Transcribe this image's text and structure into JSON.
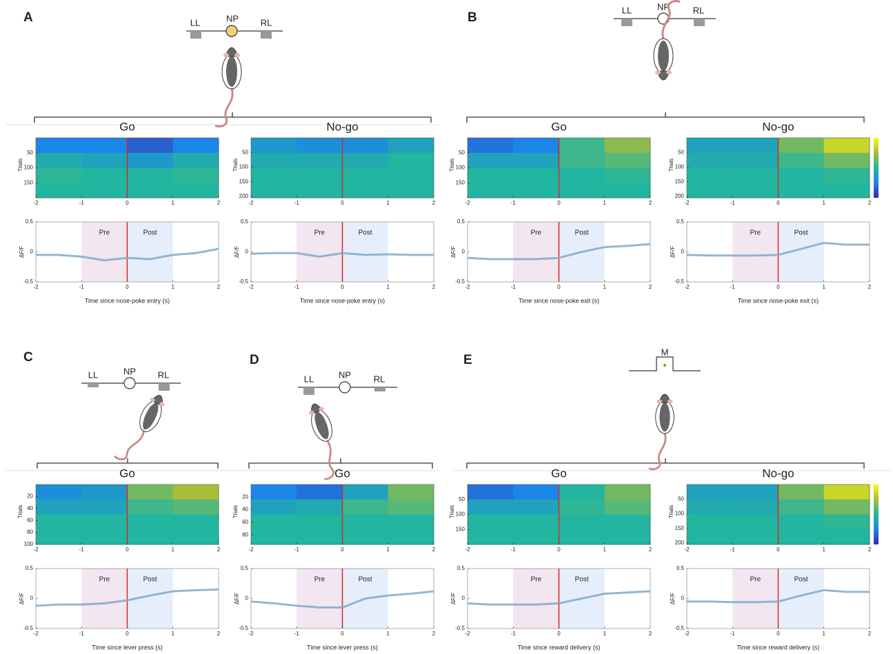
{
  "panels": [
    {
      "letter": "A",
      "labels": [
        "LL",
        "NP",
        "RL"
      ]
    },
    {
      "letter": "B",
      "labels": [
        "LL",
        "NP",
        "RL"
      ]
    },
    {
      "letter": "C",
      "labels": [
        "LL",
        "NP",
        "RL"
      ]
    },
    {
      "letter": "D",
      "labels": [
        "LL",
        "NP",
        "RL"
      ]
    },
    {
      "letter": "E",
      "labels": [
        "M"
      ]
    }
  ],
  "chart_data": [
    {
      "type": "heatmap",
      "title": "Go",
      "ylabel": "Trials",
      "xlim": [
        -2,
        2
      ],
      "xticks": [
        -2,
        -1,
        0,
        1,
        2
      ],
      "ylim": [
        0,
        200
      ],
      "yticks": [
        50,
        100,
        150
      ],
      "clim": [
        -1,
        1
      ],
      "vline": 0,
      "vline_color": "#d62728",
      "values": [
        [
          -0.5,
          -0.5,
          -0.7,
          -0.5
        ],
        [
          -0.1,
          -0.2,
          -0.3,
          -0.1
        ],
        [
          0.05,
          0,
          0,
          0.05
        ],
        [
          0,
          0,
          0,
          0
        ]
      ]
    },
    {
      "type": "line",
      "ylabel": "ΔF/F",
      "xlabel": "Time since nose-poke entry (s)",
      "xlim": [
        -2,
        2
      ],
      "xticks": [
        -2,
        -1,
        0,
        1,
        2
      ],
      "ylim": [
        -0.5,
        0.5
      ],
      "yticks": [
        -0.5,
        0,
        0.5
      ],
      "vline": 0,
      "vline_color": "#d62728",
      "color": "#7fa9cc",
      "regions": [
        {
          "label": "Pre",
          "x": [
            -1,
            0
          ],
          "color": "#f2e6f0"
        },
        {
          "label": "Post",
          "x": [
            0,
            1
          ],
          "color": "#e6eefb"
        }
      ],
      "x": [
        -2,
        -1.5,
        -1,
        -0.5,
        0,
        0.5,
        1,
        1.5,
        2
      ],
      "values": [
        -0.05,
        -0.05,
        -0.08,
        -0.14,
        -0.1,
        -0.12,
        -0.05,
        -0.02,
        0.05
      ]
    },
    {
      "type": "heatmap",
      "title": "No-go",
      "ylabel": "Trials",
      "xlim": [
        -2,
        2
      ],
      "xticks": [
        -2,
        -1,
        0,
        1,
        2
      ],
      "ylim": [
        0,
        205
      ],
      "yticks": [
        50,
        100,
        150,
        200
      ],
      "clim": [
        -1,
        1
      ],
      "vline": 0,
      "vline_color": "#d62728",
      "values": [
        [
          -0.3,
          -0.4,
          -0.4,
          -0.2
        ],
        [
          -0.1,
          -0.1,
          -0.1,
          0
        ],
        [
          0,
          0,
          0,
          0
        ],
        [
          0,
          0,
          0,
          0
        ]
      ]
    },
    {
      "type": "line",
      "ylabel": "ΔF/F",
      "xlabel": "Time since nose-poke entry (s)",
      "xlim": [
        -2,
        2
      ],
      "xticks": [
        -2,
        -1,
        0,
        1,
        2
      ],
      "ylim": [
        -0.5,
        0.5
      ],
      "yticks": [
        -0.5,
        0,
        0.5
      ],
      "vline": 0,
      "vline_color": "#d62728",
      "color": "#7fa9cc",
      "regions": [
        {
          "label": "Pre",
          "x": [
            -1,
            0
          ],
          "color": "#f2e6f0"
        },
        {
          "label": "Post",
          "x": [
            0,
            1
          ],
          "color": "#e6eefb"
        }
      ],
      "x": [
        -2,
        -1.5,
        -1,
        -0.5,
        0,
        0.5,
        1,
        1.5,
        2
      ],
      "values": [
        -0.03,
        -0.02,
        -0.02,
        -0.08,
        -0.02,
        -0.05,
        -0.04,
        -0.05,
        -0.05
      ]
    },
    {
      "type": "heatmap",
      "title": "Go",
      "ylabel": "Trials",
      "xlim": [
        -2,
        2
      ],
      "xticks": [
        -2,
        -1,
        0,
        1,
        2
      ],
      "ylim": [
        0,
        200
      ],
      "yticks": [
        50,
        100,
        150
      ],
      "clim": [
        -1,
        1
      ],
      "vline": 0,
      "vline_color": "#d62728",
      "values": [
        [
          -0.6,
          -0.5,
          0.1,
          0.4
        ],
        [
          -0.2,
          -0.2,
          0.1,
          0.2
        ],
        [
          0,
          0,
          0,
          0.05
        ],
        [
          0,
          0,
          0,
          0
        ]
      ]
    },
    {
      "type": "line",
      "ylabel": "ΔF/F",
      "xlabel": "Time since nose-poke exit (s)",
      "xlim": [
        -2,
        2
      ],
      "xticks": [
        -2,
        -1,
        0,
        1,
        2
      ],
      "ylim": [
        -0.5,
        0.5
      ],
      "yticks": [
        -0.5,
        0,
        0.5
      ],
      "vline": 0,
      "vline_color": "#d62728",
      "color": "#7fa9cc",
      "regions": [
        {
          "label": "Pre",
          "x": [
            -1,
            0
          ],
          "color": "#f2e6f0"
        },
        {
          "label": "Post",
          "x": [
            0,
            1
          ],
          "color": "#e6eefb"
        }
      ],
      "x": [
        -2,
        -1.5,
        -1,
        -0.5,
        0,
        0.5,
        1,
        1.5,
        2
      ],
      "values": [
        -0.1,
        -0.12,
        -0.12,
        -0.12,
        -0.1,
        0,
        0.08,
        0.1,
        0.13
      ]
    },
    {
      "type": "heatmap",
      "title": "No-go",
      "ylabel": "Trials",
      "xlim": [
        -2,
        2
      ],
      "xticks": [
        -2,
        -1,
        0,
        1,
        2
      ],
      "ylim": [
        0,
        205
      ],
      "yticks": [
        50,
        100,
        150,
        200
      ],
      "clim": [
        -1,
        1
      ],
      "vline": 0,
      "vline_color": "#d62728",
      "colorbar": true,
      "values": [
        [
          -0.2,
          -0.2,
          0.3,
          0.7
        ],
        [
          -0.1,
          -0.1,
          0.1,
          0.3
        ],
        [
          0,
          0,
          0,
          0.05
        ],
        [
          0,
          0,
          0,
          0
        ]
      ]
    },
    {
      "type": "line",
      "ylabel": "ΔF/F",
      "xlabel": "Time since nose-poke exit (s)",
      "xlim": [
        -2,
        2
      ],
      "xticks": [
        -2,
        -1,
        0,
        1,
        2
      ],
      "ylim": [
        -0.5,
        0.5
      ],
      "yticks": [
        -0.5,
        0,
        0.5
      ],
      "vline": 0,
      "vline_color": "#d62728",
      "color": "#7fa9cc",
      "regions": [
        {
          "label": "Pre",
          "x": [
            -1,
            0
          ],
          "color": "#f2e6f0"
        },
        {
          "label": "Post",
          "x": [
            0,
            1
          ],
          "color": "#e6eefb"
        }
      ],
      "x": [
        -2,
        -1.5,
        -1,
        -0.5,
        0,
        0.5,
        1,
        1.5,
        2
      ],
      "values": [
        -0.05,
        -0.06,
        -0.06,
        -0.06,
        -0.05,
        0.05,
        0.15,
        0.12,
        0.12
      ]
    },
    {
      "type": "heatmap",
      "title": "Go",
      "ylabel": "Trials",
      "xlim": [
        -2,
        2
      ],
      "xticks": [
        -2,
        -1,
        0,
        1,
        2
      ],
      "ylim": [
        0,
        100
      ],
      "yticks": [
        20,
        40,
        60,
        80,
        100
      ],
      "clim": [
        -1,
        1
      ],
      "vline": 0,
      "vline_color": "#d62728",
      "values": [
        [
          -0.4,
          -0.3,
          0.3,
          0.5
        ],
        [
          -0.2,
          -0.2,
          0.1,
          0.2
        ],
        [
          0,
          0,
          0,
          0
        ],
        [
          0,
          0,
          0,
          0
        ]
      ]
    },
    {
      "type": "line",
      "ylabel": "ΔF/F",
      "xlabel": "Time since lever press (s)",
      "xlim": [
        -2,
        2
      ],
      "xticks": [
        -2,
        -1,
        0,
        1,
        2
      ],
      "ylim": [
        -0.5,
        0.5
      ],
      "yticks": [
        -0.5,
        0,
        0.5
      ],
      "vline": 0,
      "vline_color": "#d62728",
      "color": "#7fa9cc",
      "regions": [
        {
          "label": "Pre",
          "x": [
            -1,
            0
          ],
          "color": "#f2e6f0"
        },
        {
          "label": "Post",
          "x": [
            0,
            1
          ],
          "color": "#e6eefb"
        }
      ],
      "x": [
        -2,
        -1.5,
        -1,
        -0.5,
        0,
        0.5,
        1,
        1.5,
        2
      ],
      "values": [
        -0.12,
        -0.1,
        -0.1,
        -0.08,
        -0.03,
        0.05,
        0.12,
        0.14,
        0.15
      ]
    },
    {
      "type": "heatmap",
      "title": "Go",
      "ylabel": "Trials",
      "xlim": [
        -2,
        2
      ],
      "xticks": [
        -2,
        -1,
        0,
        1,
        2
      ],
      "ylim": [
        0,
        95
      ],
      "yticks": [
        20,
        40,
        60,
        80
      ],
      "clim": [
        -1,
        1
      ],
      "vline": 0,
      "vline_color": "#d62728",
      "values": [
        [
          -0.5,
          -0.6,
          -0.2,
          0.3
        ],
        [
          -0.2,
          -0.1,
          0.1,
          0.2
        ],
        [
          0,
          0,
          0,
          0
        ],
        [
          0,
          0,
          0,
          0
        ]
      ]
    },
    {
      "type": "line",
      "ylabel": "ΔF/F",
      "xlabel": "Time since lever press (s)",
      "xlim": [
        -2,
        2
      ],
      "xticks": [
        -2,
        -1,
        0,
        1,
        2
      ],
      "ylim": [
        -0.5,
        0.5
      ],
      "yticks": [
        -0.5,
        0,
        0.5
      ],
      "vline": 0,
      "vline_color": "#d62728",
      "color": "#7fa9cc",
      "regions": [
        {
          "label": "Pre",
          "x": [
            -1,
            0
          ],
          "color": "#f2e6f0"
        },
        {
          "label": "Post",
          "x": [
            0,
            1
          ],
          "color": "#e6eefb"
        }
      ],
      "x": [
        -2,
        -1.5,
        -1,
        -0.5,
        0,
        0.5,
        1,
        1.5,
        2
      ],
      "values": [
        -0.05,
        -0.08,
        -0.12,
        -0.15,
        -0.15,
        0,
        0.05,
        0.08,
        0.12
      ]
    },
    {
      "type": "heatmap",
      "title": "Go",
      "ylabel": "Trials",
      "xlim": [
        -2,
        2
      ],
      "xticks": [
        -2,
        -1,
        0,
        1,
        2
      ],
      "ylim": [
        0,
        200
      ],
      "yticks": [
        50,
        100,
        150
      ],
      "clim": [
        -1,
        1
      ],
      "vline": 0,
      "vline_color": "#d62728",
      "values": [
        [
          -0.6,
          -0.5,
          0,
          0.3
        ],
        [
          -0.2,
          -0.2,
          0.05,
          0.2
        ],
        [
          0,
          0,
          0,
          0
        ],
        [
          0,
          0,
          0,
          0
        ]
      ]
    },
    {
      "type": "line",
      "ylabel": "ΔF/F",
      "xlabel": "Time since reward delivery (s)",
      "xlim": [
        -2,
        2
      ],
      "xticks": [
        -2,
        -1,
        0,
        1,
        2
      ],
      "ylim": [
        -0.5,
        0.5
      ],
      "yticks": [
        -0.5,
        0,
        0.5
      ],
      "vline": 0,
      "vline_color": "#d62728",
      "color": "#7fa9cc",
      "regions": [
        {
          "label": "Pre",
          "x": [
            -1,
            0
          ],
          "color": "#f2e6f0"
        },
        {
          "label": "Post",
          "x": [
            0,
            1
          ],
          "color": "#e6eefb"
        }
      ],
      "x": [
        -2,
        -1.5,
        -1,
        -0.5,
        0,
        0.5,
        1,
        1.5,
        2
      ],
      "values": [
        -0.08,
        -0.1,
        -0.1,
        -0.1,
        -0.08,
        0,
        0.08,
        0.1,
        0.12
      ]
    },
    {
      "type": "heatmap",
      "title": "No-go",
      "ylabel": "Trials",
      "xlim": [
        -2,
        2
      ],
      "xticks": [
        -2,
        -1,
        0,
        1,
        2
      ],
      "ylim": [
        0,
        205
      ],
      "yticks": [
        50,
        100,
        150,
        200
      ],
      "clim": [
        -1,
        1
      ],
      "vline": 0,
      "vline_color": "#d62728",
      "colorbar": true,
      "values": [
        [
          -0.2,
          -0.2,
          0.3,
          0.7
        ],
        [
          -0.1,
          -0.1,
          0.1,
          0.3
        ],
        [
          0,
          0,
          0,
          0.05
        ],
        [
          0,
          0,
          0,
          0
        ]
      ]
    },
    {
      "type": "line",
      "ylabel": "ΔF/F",
      "xlabel": "Time since reward delivery (s)",
      "xlim": [
        -2,
        2
      ],
      "xticks": [
        -2,
        -1,
        0,
        1,
        2
      ],
      "ylim": [
        -0.5,
        0.5
      ],
      "yticks": [
        -0.5,
        0,
        0.5
      ],
      "vline": 0,
      "vline_color": "#d62728",
      "color": "#7fa9cc",
      "regions": [
        {
          "label": "Pre",
          "x": [
            -1,
            0
          ],
          "color": "#f2e6f0"
        },
        {
          "label": "Post",
          "x": [
            0,
            1
          ],
          "color": "#e6eefb"
        }
      ],
      "x": [
        -2,
        -1.5,
        -1,
        -0.5,
        0,
        0.5,
        1,
        1.5,
        2
      ],
      "values": [
        -0.05,
        -0.05,
        -0.06,
        -0.06,
        -0.05,
        0.05,
        0.14,
        0.11,
        0.11
      ]
    }
  ]
}
